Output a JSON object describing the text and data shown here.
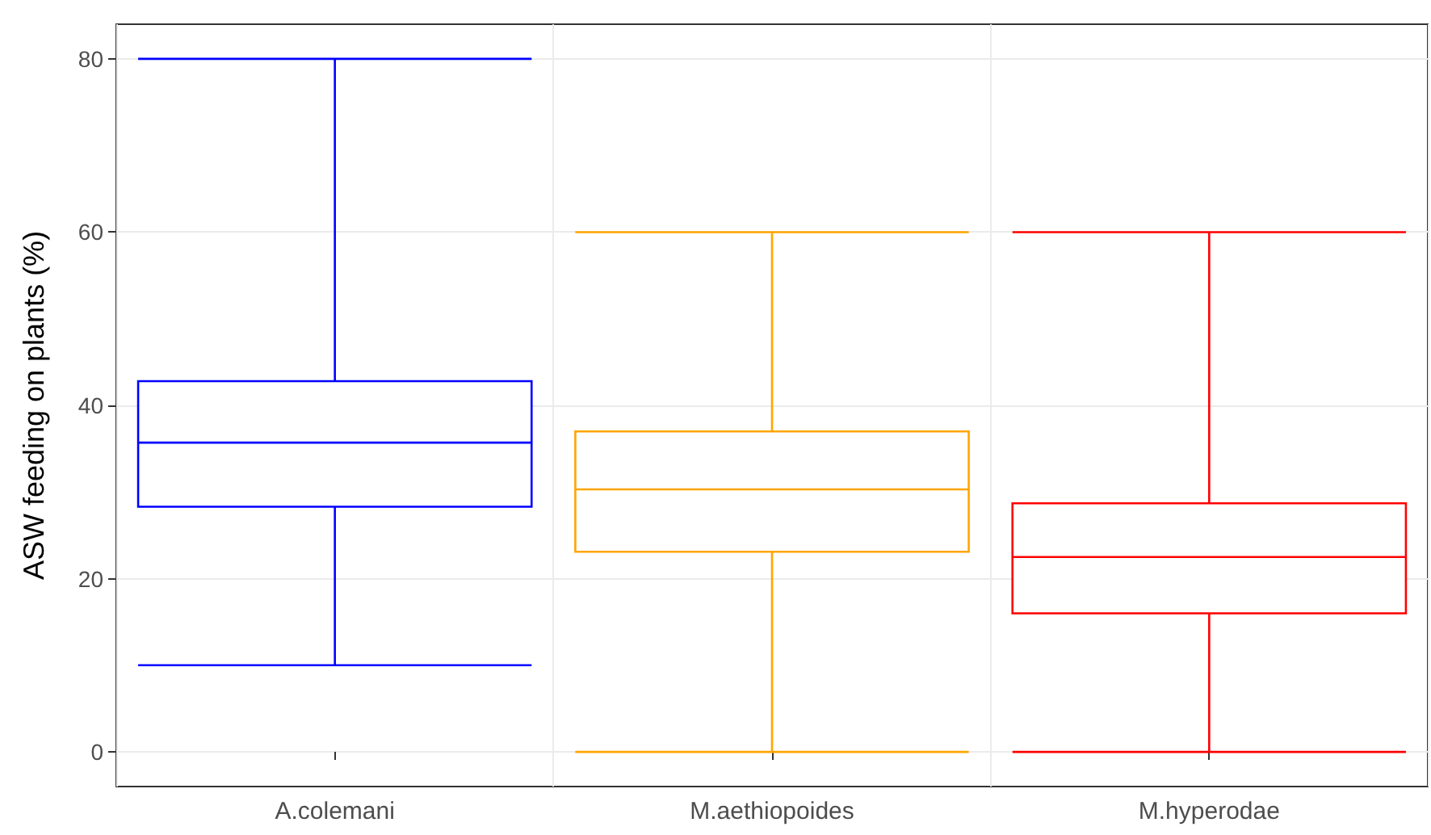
{
  "chart_data": {
    "type": "box",
    "ylabel": "ASW feeding on plants (%)",
    "categories": [
      "A.colemani",
      "M.aethiopoides",
      "M.hyperodae"
    ],
    "boxes": [
      {
        "low": 10,
        "q1": 28.3,
        "median": 35.7,
        "q3": 42.8,
        "high": 80
      },
      {
        "low": 0,
        "q1": 23.1,
        "median": 30.3,
        "q3": 37,
        "high": 60
      },
      {
        "low": 0,
        "q1": 16,
        "median": 22.5,
        "q3": 28.7,
        "high": 60
      }
    ],
    "colors": [
      "#0000ff",
      "#ffa500",
      "#ff0000"
    ],
    "ylim": [
      -4,
      84
    ],
    "yticks": [
      0,
      20,
      40,
      60,
      80
    ],
    "grid": true
  }
}
